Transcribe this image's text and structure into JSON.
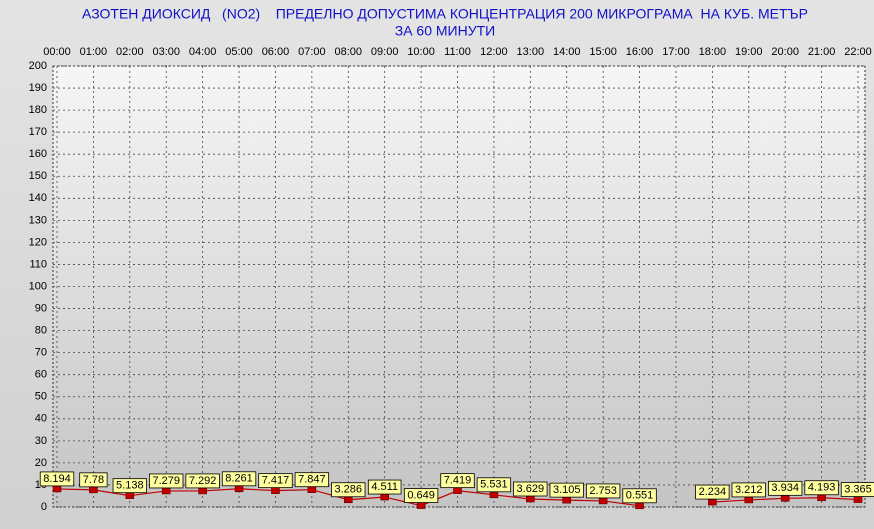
{
  "chart_data": {
    "type": "line",
    "title": "АЗОТЕН ДИОКСИД   (NO2)    ПРЕДЕЛНО ДОПУСТИМА КОНЦЕНТРАЦИЯ 200 МИКРОГРАМА  НА КУБ. МЕТЪР",
    "subtitle": "ЗА 60 МИНУТИ",
    "categories": [
      "00:00",
      "01:00",
      "02:00",
      "03:00",
      "04:00",
      "05:00",
      "06:00",
      "07:00",
      "08:00",
      "09:00",
      "10:00",
      "11:00",
      "12:00",
      "13:00",
      "14:00",
      "15:00",
      "16:00",
      "17:00",
      "18:00",
      "19:00",
      "20:00",
      "21:00",
      "22:00"
    ],
    "values": [
      8.194,
      7.78,
      5.138,
      7.279,
      7.292,
      8.261,
      7.417,
      7.847,
      3.286,
      4.511,
      0.649,
      7.419,
      5.531,
      3.629,
      3.105,
      2.753,
      0.551,
      null,
      2.234,
      3.212,
      3.934,
      4.193,
      3.365
    ],
    "color": "#c00000",
    "ylim": [
      0,
      200
    ],
    "yticks": [
      0,
      10,
      20,
      30,
      40,
      50,
      60,
      70,
      80,
      90,
      100,
      110,
      120,
      130,
      140,
      150,
      160,
      170,
      180,
      190,
      200
    ],
    "grid": true
  }
}
